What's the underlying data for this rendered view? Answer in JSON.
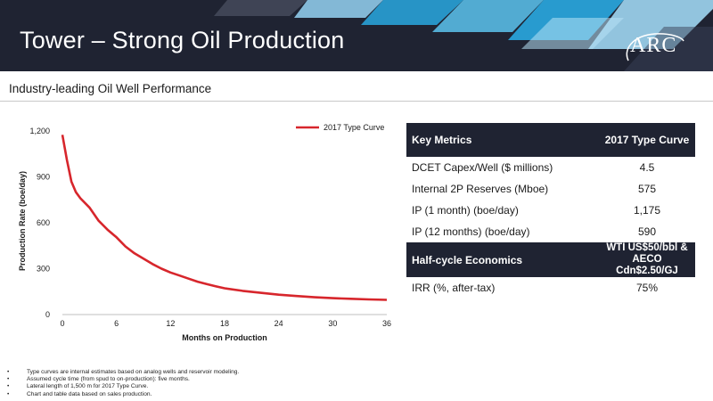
{
  "header": {
    "title": "Tower – Strong Oil Production",
    "logo_text": "ARC"
  },
  "subtitle": "Industry-leading Oil Well Performance",
  "colors": {
    "header_bg": "#1f2332",
    "curve": "#d7262c",
    "accent_light": "#29a8e0"
  },
  "chart_data": {
    "type": "line",
    "title": "",
    "xlabel": "Months on Production",
    "ylabel": "Production Rate (boe/day)",
    "xlim": [
      0,
      36
    ],
    "ylim": [
      0,
      1200
    ],
    "xticks": [
      0,
      6,
      12,
      18,
      24,
      30,
      36
    ],
    "yticks": [
      0,
      300,
      600,
      900,
      1200
    ],
    "ytick_labels": [
      "0",
      "300",
      "600",
      "900",
      "1,200"
    ],
    "legend_position": "top-right",
    "grid": false,
    "series": [
      {
        "name": "2017 Type Curve",
        "x": [
          0,
          0.5,
          1,
          1.5,
          2,
          3,
          4,
          5,
          6,
          7,
          8,
          9,
          10,
          11,
          12,
          13,
          14,
          15,
          16,
          17,
          18,
          20,
          22,
          24,
          26,
          28,
          30,
          32,
          34,
          36
        ],
        "y": [
          1175,
          1010,
          870,
          800,
          760,
          700,
          615,
          555,
          505,
          445,
          400,
          365,
          330,
          300,
          275,
          255,
          235,
          215,
          200,
          185,
          172,
          155,
          142,
          130,
          121,
          113,
          107,
          103,
          99,
          96
        ]
      }
    ]
  },
  "metrics": {
    "header": {
      "label": "Key Metrics",
      "value": "2017 Type Curve"
    },
    "rows": [
      {
        "label": "DCET Capex/Well ($ millions)",
        "value": "4.5"
      },
      {
        "label": "Internal 2P Reserves (Mboe)",
        "value": "575"
      },
      {
        "label": "IP (1 month) (boe/day)",
        "value": "1,175"
      },
      {
        "label": "IP (12 months) (boe/day)",
        "value": "590"
      }
    ],
    "economics_header": {
      "label": "Half-cycle Economics",
      "value_line1": "WTI US$50/bbl &",
      "value_line2": "AECO Cdn$2.50/GJ"
    },
    "economics_rows": [
      {
        "label": "IRR (%, after-tax)",
        "value": "75%"
      }
    ]
  },
  "footnotes": [
    "Type curves are internal estimates based on analog wells and reservoir modeling.",
    "Assumed cycle time (from spud to on-production): five months.",
    "Lateral length of 1,500 m for 2017 Type Curve.",
    "Chart and table data based on sales production."
  ]
}
